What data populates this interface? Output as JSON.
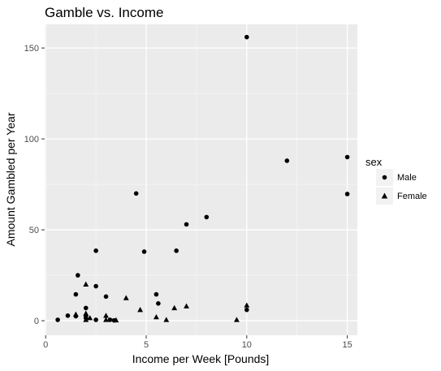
{
  "chart_data": {
    "type": "scatter",
    "title": "Gamble vs. Income",
    "xlabel": "Income per Week [Pounds]",
    "ylabel": "Amount Gambled per Year",
    "xlim": [
      -0.05,
      15.5
    ],
    "ylim": [
      -8,
      163
    ],
    "x_ticks": [
      0,
      5,
      10,
      15
    ],
    "y_ticks": [
      0,
      50,
      100,
      150
    ],
    "x_tick_labels": [
      "0",
      "5",
      "10",
      "15"
    ],
    "y_tick_labels": [
      "0",
      "50",
      "100",
      "150"
    ],
    "grid": true,
    "legend": {
      "title": "sex",
      "position": "right",
      "entries": [
        {
          "label": "Male",
          "shape": "circle"
        },
        {
          "label": "Female",
          "shape": "triangle"
        }
      ]
    },
    "series": [
      {
        "name": "Male",
        "shape": "circle",
        "points": [
          [
            0.6,
            0.5
          ],
          [
            1.1,
            2.8
          ],
          [
            1.5,
            2.5
          ],
          [
            1.5,
            14.5
          ],
          [
            1.6,
            25
          ],
          [
            2.0,
            7
          ],
          [
            2.0,
            1.5
          ],
          [
            2.0,
            2.5
          ],
          [
            2.5,
            38.5
          ],
          [
            2.5,
            19
          ],
          [
            2.5,
            0.5
          ],
          [
            3.0,
            13.3
          ],
          [
            3.2,
            0.5
          ],
          [
            3.4,
            0.2
          ],
          [
            4.5,
            70
          ],
          [
            4.9,
            38
          ],
          [
            5.5,
            14.5
          ],
          [
            5.6,
            9.5
          ],
          [
            6.5,
            38.5
          ],
          [
            7.0,
            53
          ],
          [
            8.0,
            57
          ],
          [
            10.0,
            156
          ],
          [
            10.0,
            6
          ],
          [
            12.0,
            88
          ],
          [
            15.0,
            90
          ],
          [
            15.0,
            69.7
          ]
        ]
      },
      {
        "name": "Female",
        "shape": "triangle",
        "points": [
          [
            1.5,
            3.5
          ],
          [
            2.0,
            20
          ],
          [
            2.0,
            4
          ],
          [
            2.0,
            0.5
          ],
          [
            2.2,
            1.5
          ],
          [
            3.0,
            0.5
          ],
          [
            3.0,
            2.8
          ],
          [
            3.5,
            0.3
          ],
          [
            4.0,
            12.5
          ],
          [
            4.7,
            6
          ],
          [
            5.5,
            2
          ],
          [
            6.0,
            0.5
          ],
          [
            6.4,
            7
          ],
          [
            7.0,
            8
          ],
          [
            9.5,
            0.5
          ],
          [
            10.0,
            8.5
          ]
        ]
      }
    ]
  }
}
